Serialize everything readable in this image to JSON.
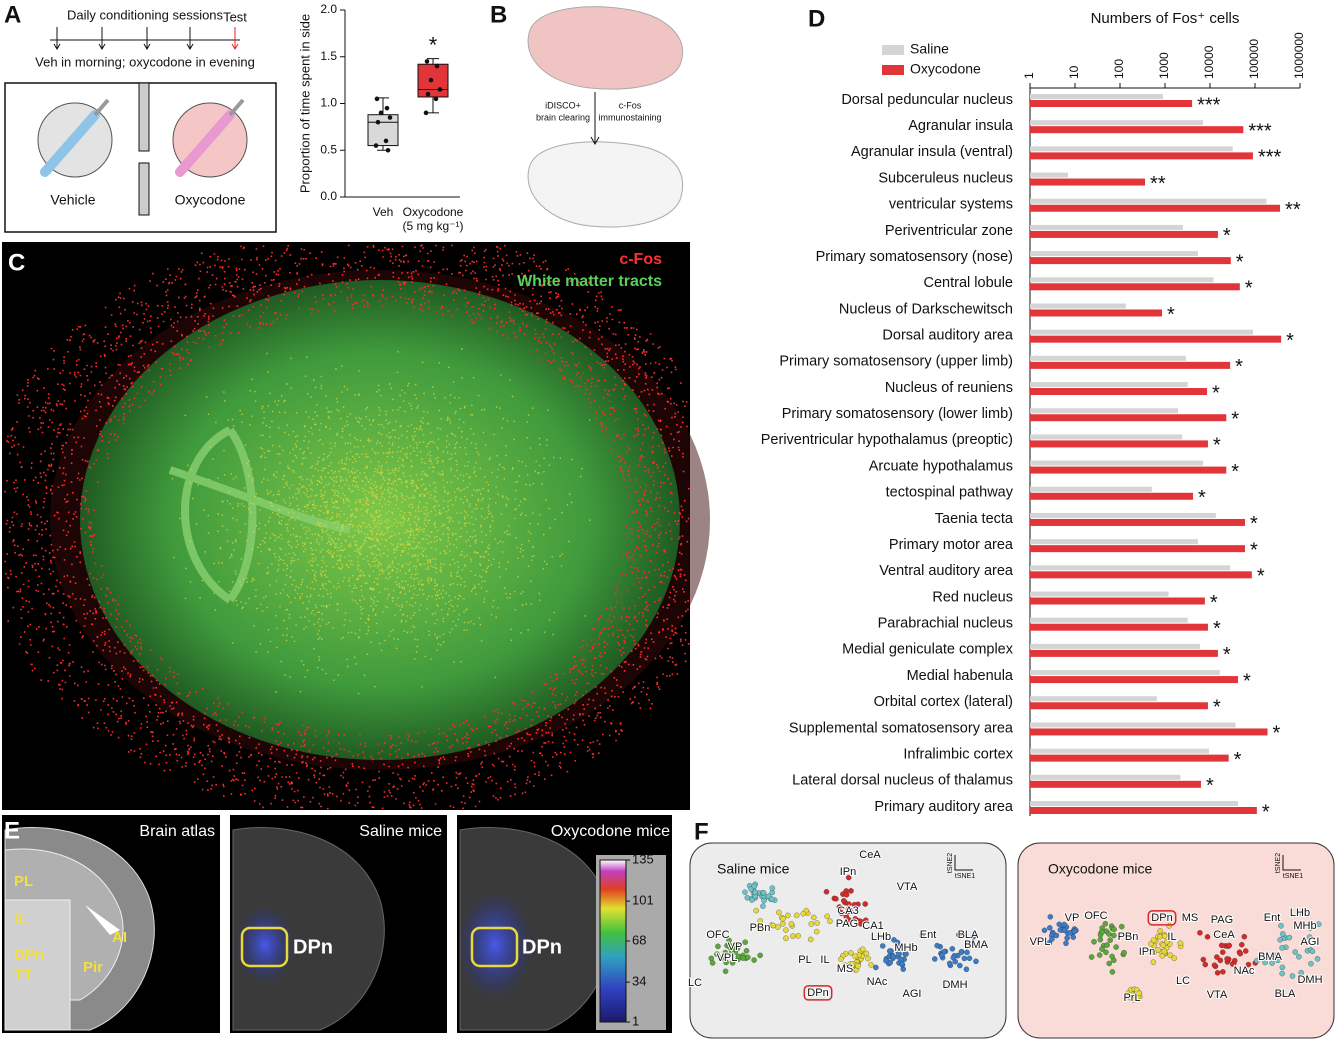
{
  "panel_A": {
    "label": "A",
    "timeline_title": "Daily conditioning sessions",
    "test": "Test",
    "timeline_note": "Veh in morning; oxycodone in evening",
    "chambers": [
      "Vehicle",
      "Oxycodone"
    ]
  },
  "panel_B": {
    "label": "B",
    "step_left": [
      "iDISCO+",
      "brain clearing"
    ],
    "step_right": [
      "c-Fos",
      "immunostaining"
    ]
  },
  "panel_C": {
    "label": "C",
    "legend": [
      "c-Fos",
      "White matter tracts"
    ]
  },
  "chart_data": [
    {
      "type": "box",
      "ylabel": "Proportion of time spent in side",
      "categories": [
        "Veh",
        "Oxycodone (5 mg kg⁻¹)"
      ],
      "colors": [
        "#d9d9d9",
        "#e2353a"
      ],
      "ylim": [
        0,
        2
      ],
      "yticks": [
        {
          "value": 0,
          "label": "0.0"
        },
        {
          "value": 0.5,
          "label": "0.5"
        },
        {
          "value": 1,
          "label": "1.0"
        },
        {
          "value": 1.5,
          "label": "1.5"
        },
        {
          "value": 2,
          "label": "2.0"
        }
      ],
      "boxes": [
        {
          "whislo": 0.5,
          "q1": 0.55,
          "med": 0.8,
          "q3": 0.88,
          "whishi": 1.06,
          "points": [
            1.05,
            0.95,
            0.9,
            0.85,
            0.8,
            0.6,
            0.55,
            0.5
          ]
        },
        {
          "whislo": 0.9,
          "q1": 1.07,
          "med": 1.15,
          "q3": 1.42,
          "whishi": 1.48,
          "points": [
            1.45,
            1.4,
            1.25,
            1.15,
            1.1,
            1.05,
            0.9
          ],
          "label": "*"
        }
      ]
    },
    {
      "type": "bar",
      "orientation": "horizontal",
      "title": "Numbers of Fos⁺ cells",
      "xscale": "log",
      "xlim": [
        1,
        1000000
      ],
      "xticks": [
        1,
        10,
        100,
        1000,
        10000,
        100000,
        1000000
      ],
      "legend": "upper left",
      "categories": [
        "Dorsal peduncular nucleus",
        "Agranular insula",
        "Agranular insula (ventral)",
        "Subceruleus nucleus",
        "ventricular systems",
        "Periventricular zone",
        "Primary somatosensory (nose)",
        "Central lobule",
        "Nucleus of Darkschewitsch",
        "Dorsal auditory area",
        "Primary somatosensory (upper limb)",
        "Nucleus of reuniens",
        "Primary somatosensory (lower limb)",
        "Periventricular hypothalamus (preoptic)",
        "Arcuate hypothalamus",
        "tectospinal pathway",
        "Taenia tecta",
        "Primary motor area",
        "Ventral auditory area",
        "Red nucleus",
        "Parabrachial nucleus",
        "Medial geniculate complex",
        "Medial habenula",
        "Orbital cortex (lateral)",
        "Supplemental somatosensory area",
        "Infralimbic cortex",
        "Lateral dorsal nucleus of thalamus",
        "Primary auditory area"
      ],
      "series": [
        {
          "name": "Saline",
          "color": "#d4d4d4",
          "values": [
            900,
            7000,
            32000,
            7,
            180000,
            2500,
            5400,
            12000,
            135,
            90000,
            2900,
            3200,
            1950,
            2400,
            7000,
            510,
            13500,
            5400,
            28000,
            1200,
            3200,
            6000,
            16500,
            660,
            37000,
            9500,
            2200,
            42000
          ]
        },
        {
          "name": "Oxycodone",
          "color": "#e2353a",
          "values": [
            4000,
            55000,
            90000,
            360,
            360000,
            15000,
            29000,
            46000,
            860,
            380000,
            28000,
            8600,
            23000,
            9000,
            23000,
            4200,
            60000,
            60000,
            85000,
            7700,
            9000,
            15000,
            42000,
            9000,
            190000,
            26000,
            6300,
            110000
          ]
        }
      ],
      "significance": [
        "***",
        "***",
        "***",
        "**",
        "**",
        "*",
        "*",
        "*",
        "*",
        "*",
        "*",
        "*",
        "*",
        "*",
        "*",
        "*",
        "*",
        "*",
        "*",
        "*",
        "*",
        "*",
        "*",
        "*",
        "*",
        "*",
        "*",
        "*"
      ]
    }
  ],
  "panel_E": {
    "label": "E",
    "titles": [
      "Brain atlas",
      "Saline mice",
      "Oxycodone mice"
    ],
    "atlas_regions": [
      "PL",
      "IL",
      "DPn",
      "TT",
      "AI",
      "Pir"
    ],
    "roi_labels": [
      "DPn",
      "DPn"
    ],
    "colorbar": {
      "lim": [
        1,
        135
      ],
      "ticks": [
        135,
        101,
        68,
        34,
        1
      ]
    }
  },
  "panel_F": {
    "label": "F",
    "plots": [
      {
        "title": "Saline mice",
        "axes": [
          "tSNE2",
          "tSNE1"
        ],
        "nodes": [
          "CeA",
          "IPn",
          "OFC",
          "PBn",
          "VP",
          "VPL",
          "LC",
          "VTA",
          "CA3",
          "PAG",
          "CA1",
          "LHb",
          "Ent",
          "BLA",
          "BMA",
          "PL",
          "IL",
          "MS",
          "NAc",
          "MHb",
          "AGI",
          "DMH",
          "DPn"
        ]
      },
      {
        "title": "Oxycodone mice",
        "axes": [
          "tSNE2",
          "tSNE1"
        ],
        "nodes": [
          "VP",
          "VPL",
          "OFC",
          "DPn",
          "MS",
          "PBn",
          "IL",
          "IPn",
          "PAG",
          "CeA",
          "LC",
          "NAc",
          "VTA",
          "Ent",
          "LHb",
          "MHb",
          "AGI",
          "BMA",
          "DMH",
          "BLA",
          "PrL"
        ]
      }
    ]
  }
}
